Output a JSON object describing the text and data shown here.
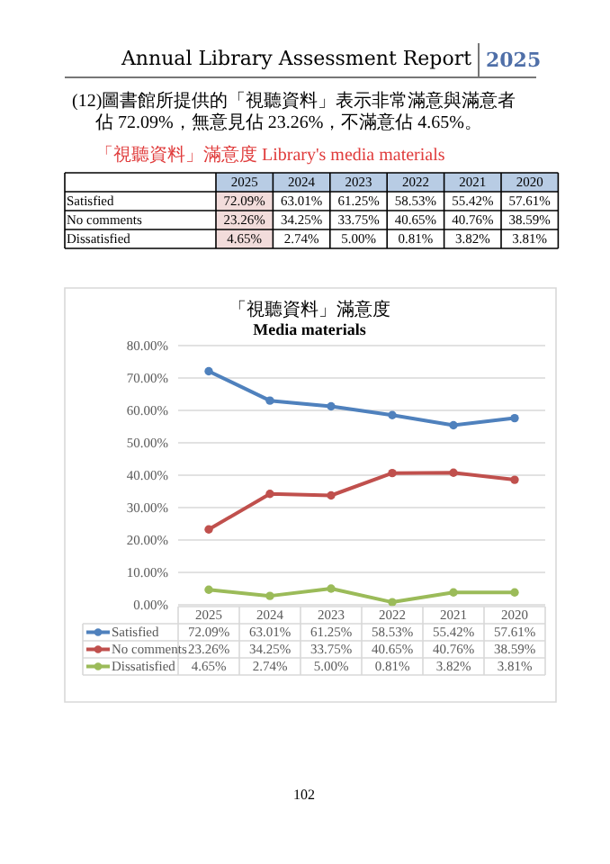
{
  "chart_data": {
    "type": "line",
    "title": "「視聽資料」滿意度",
    "subtitle": "Media materials",
    "categories": [
      "2025",
      "2024",
      "2023",
      "2022",
      "2021",
      "2020"
    ],
    "series": [
      {
        "name": "Satisfied",
        "color": "#4f81bd",
        "values": [
          72.09,
          63.01,
          61.25,
          58.53,
          55.42,
          57.61
        ],
        "value_labels": [
          "72.09%",
          "63.01%",
          "61.25%",
          "58.53%",
          "55.42%",
          "57.61%"
        ]
      },
      {
        "name": "No comments",
        "color": "#c0504d",
        "values": [
          23.26,
          34.25,
          33.75,
          40.65,
          40.76,
          38.59
        ],
        "value_labels": [
          "23.26%",
          "34.25%",
          "33.75%",
          "40.65%",
          "40.76%",
          "38.59%"
        ]
      },
      {
        "name": "Dissatisfied",
        "color": "#9bbb59",
        "values": [
          4.65,
          2.74,
          5.0,
          0.81,
          3.82,
          3.81
        ],
        "value_labels": [
          "4.65%",
          "2.74%",
          "5.00%",
          "0.81%",
          "3.82%",
          "3.81%"
        ]
      }
    ],
    "ylim": [
      0,
      80
    ],
    "yticks": [
      {
        "value": 0,
        "label": "0.00%"
      },
      {
        "value": 10,
        "label": "10.00%"
      },
      {
        "value": 20,
        "label": "20.00%"
      },
      {
        "value": 30,
        "label": "30.00%"
      },
      {
        "value": 40,
        "label": "40.00%"
      },
      {
        "value": 50,
        "label": "50.00%"
      },
      {
        "value": 60,
        "label": "60.00%"
      },
      {
        "value": 70,
        "label": "70.00%"
      },
      {
        "value": 80,
        "label": "80.00%"
      }
    ],
    "grid": "y",
    "marker": "circle",
    "legend": "bottom",
    "annotations": [
      "Annual Library Assessment Report",
      "2025",
      "(12)圖書館所提供的「視聽資料」表示非常滿意與滿意者佔 72.09%，無意見佔 23.26%，不滿意佔 4.65%。",
      "「視聽資料」滿意度 Library's media materials",
      "102"
    ]
  }
}
